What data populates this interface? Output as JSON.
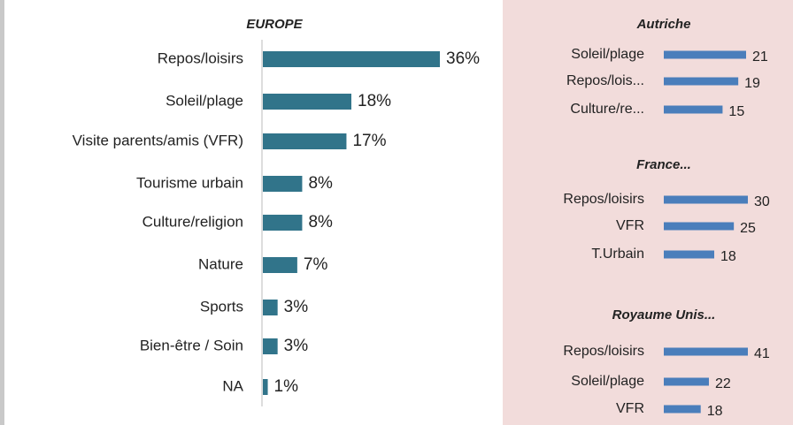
{
  "chart_data": [
    {
      "type": "hbar",
      "title": "EUROPE",
      "categories": [
        "Repos/loisirs",
        "Soleil/plage",
        "Visite parents/amis (VFR)",
        "Tourisme urbain",
        "Culture/religion",
        "Nature",
        "Sports",
        "Bien-être / Soin",
        "NA"
      ],
      "values": [
        36,
        18,
        17,
        8,
        8,
        7,
        3,
        3,
        1
      ],
      "value_labels": [
        "36%",
        "18%",
        "17%",
        "8%",
        "8%",
        "7%",
        "3%",
        "3%",
        "1%"
      ],
      "color": "#31748a"
    },
    {
      "type": "hbar",
      "title": "Autriche",
      "categories": [
        "Soleil/plage",
        "Repos/lois...",
        "Culture/re..."
      ],
      "values": [
        21,
        19,
        15
      ],
      "color": "#4a7ebb"
    },
    {
      "type": "hbar",
      "title": "France...",
      "categories": [
        "Repos/loisirs",
        "VFR",
        "T.Urbain"
      ],
      "values": [
        30,
        25,
        18
      ],
      "color": "#4a7ebb"
    },
    {
      "type": "hbar",
      "title": "Royaume Unis...",
      "categories": [
        "Repos/loisirs",
        "Soleil/plage",
        "VFR"
      ],
      "values": [
        41,
        22,
        18
      ],
      "color": "#4a7ebb"
    }
  ]
}
